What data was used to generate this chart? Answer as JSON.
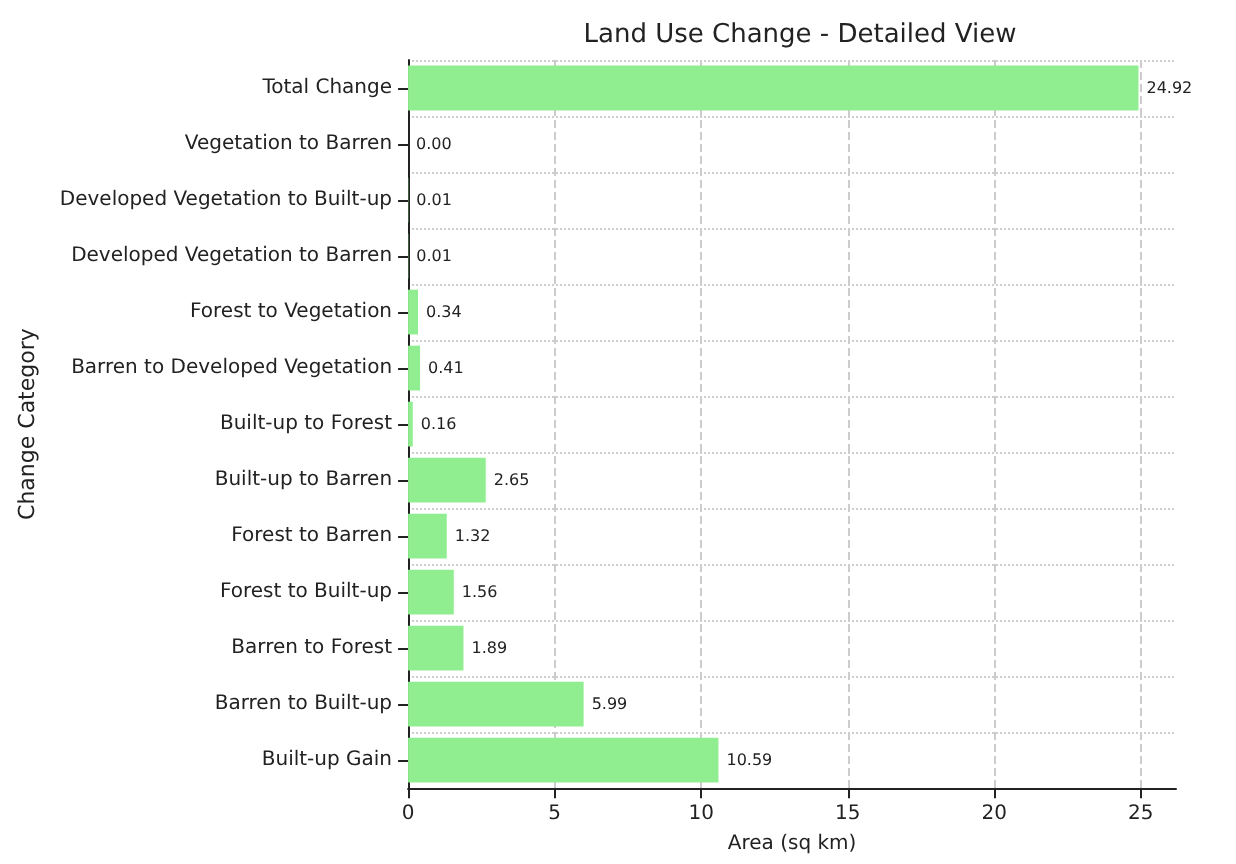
{
  "chart_data": {
    "type": "bar",
    "orientation": "horizontal",
    "title": "Land Use Change - Detailed View",
    "xlabel": "Area (sq km)",
    "ylabel": "Change Category",
    "categories": [
      "Total Change",
      "Vegetation to Barren",
      "Developed Vegetation to Built-up",
      "Developed Vegetation to Barren",
      "Forest to Vegetation",
      "Barren to Developed Vegetation",
      "Built-up to Forest",
      "Built-up to Barren",
      "Forest to Barren",
      "Forest to Built-up",
      "Barren to Forest",
      "Barren to Built-up",
      "Built-up Gain"
    ],
    "values": [
      24.92,
      0,
      0.01,
      0.01,
      0.34,
      0.41,
      0.16,
      2.65,
      1.32,
      1.56,
      1.89,
      5.99,
      10.59
    ],
    "value_labels": [
      "24.92",
      "0.00",
      "0.01",
      "0.01",
      "0.34",
      "0.41",
      "0.16",
      "2.65",
      "1.32",
      "1.56",
      "1.89",
      "5.99",
      "10.59"
    ],
    "color": "#90ee90",
    "xlim": [
      0,
      26.2
    ],
    "xticks": [
      0,
      5,
      10,
      15,
      20,
      25
    ],
    "grid": true
  }
}
